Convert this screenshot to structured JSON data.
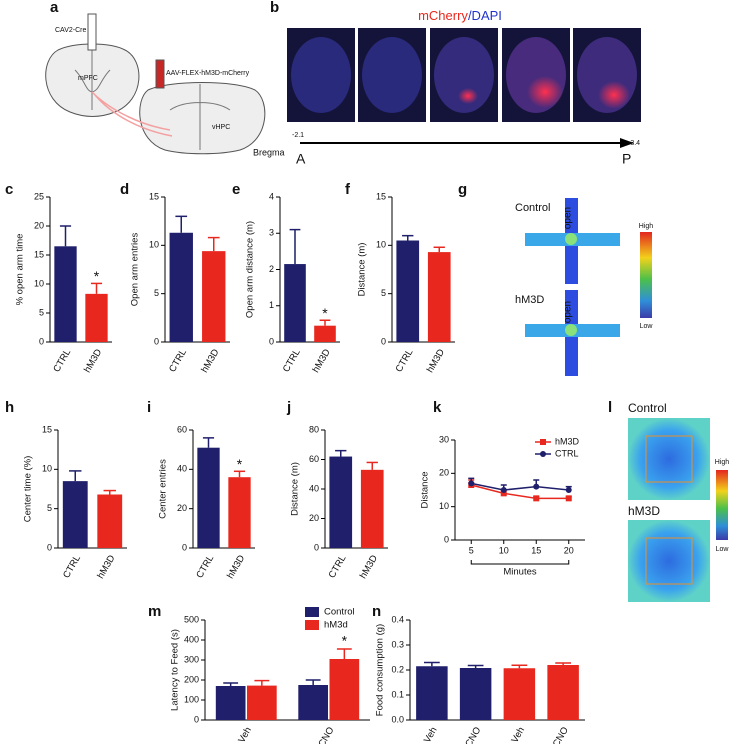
{
  "panels": {
    "a": "a",
    "b": "b",
    "g": "g",
    "l": "l",
    "a_texts": {
      "virus1": "CAV2-Cre",
      "region1": "mPFC",
      "virus2": "AAV-FLEX-hM3D-mCherry",
      "region2": "vHPC"
    },
    "b_texts": {
      "stain_red": "mCherry",
      "stain_blue": "/DAPI",
      "bregma": "Bregma",
      "start_value": "-2.1",
      "end_value": "-3.4",
      "start": "A",
      "end": "P"
    },
    "g_texts": {
      "group1": "Control",
      "arm1": "open",
      "group2": "hM3D",
      "arm2": "open",
      "high": "High",
      "low": "Low"
    },
    "l_texts": {
      "group1": "Control",
      "group2": "hM3D",
      "high": "High",
      "low": "Low"
    }
  },
  "chart_data": [
    {
      "type": "bar",
      "panel_label": "c",
      "ylabel": "% open arm time",
      "categories": [
        "CTRL",
        "hM3D"
      ],
      "values": [
        16.5,
        8.3
      ],
      "errors": [
        3.5,
        1.8
      ],
      "colors": [
        "#1f1f6b",
        "#e8281e"
      ],
      "ylim": [
        0,
        25
      ],
      "yticks": [
        0,
        5,
        10,
        15,
        20,
        25
      ],
      "annotations": [
        {
          "text": "*",
          "category": "hM3D"
        }
      ]
    },
    {
      "type": "bar",
      "panel_label": "d",
      "ylabel": "Open arm entries",
      "categories": [
        "CTRL",
        "hM3D"
      ],
      "values": [
        11.3,
        9.4
      ],
      "errors": [
        1.7,
        1.4
      ],
      "colors": [
        "#1f1f6b",
        "#e8281e"
      ],
      "ylim": [
        0,
        15
      ],
      "yticks": [
        0,
        5,
        10,
        15
      ]
    },
    {
      "type": "bar",
      "panel_label": "e",
      "ylabel": "Open arm distance (m)",
      "categories": [
        "CTRL",
        "hM3D"
      ],
      "values": [
        2.15,
        0.45
      ],
      "errors": [
        0.95,
        0.15
      ],
      "colors": [
        "#1f1f6b",
        "#e8281e"
      ],
      "ylim": [
        0,
        4
      ],
      "yticks": [
        0,
        1,
        2,
        3,
        4
      ],
      "annotations": [
        {
          "text": "*",
          "category": "hM3D"
        }
      ]
    },
    {
      "type": "bar",
      "panel_label": "f",
      "ylabel": "Distance (m)",
      "categories": [
        "CTRL",
        "hM3D"
      ],
      "values": [
        10.5,
        9.3
      ],
      "errors": [
        0.5,
        0.5
      ],
      "colors": [
        "#1f1f6b",
        "#e8281e"
      ],
      "ylim": [
        0,
        15
      ],
      "yticks": [
        0,
        5,
        10,
        15
      ]
    },
    {
      "type": "bar",
      "panel_label": "h",
      "ylabel": "Center time (%)",
      "categories": [
        "CTRL",
        "hM3D"
      ],
      "values": [
        8.5,
        6.8
      ],
      "errors": [
        1.3,
        0.5
      ],
      "colors": [
        "#1f1f6b",
        "#e8281e"
      ],
      "ylim": [
        0,
        15
      ],
      "yticks": [
        0,
        5,
        10,
        15
      ]
    },
    {
      "type": "bar",
      "panel_label": "i",
      "ylabel": "Center entries",
      "categories": [
        "CTRL",
        "hM3D"
      ],
      "values": [
        51,
        36
      ],
      "errors": [
        5,
        3
      ],
      "colors": [
        "#1f1f6b",
        "#e8281e"
      ],
      "ylim": [
        0,
        60
      ],
      "yticks": [
        0,
        20,
        40,
        60
      ],
      "annotations": [
        {
          "text": "*",
          "category": "hM3D"
        }
      ]
    },
    {
      "type": "bar",
      "panel_label": "j",
      "ylabel": "Distance (m)",
      "categories": [
        "CTRL",
        "hM3D"
      ],
      "values": [
        62,
        53
      ],
      "errors": [
        4,
        5
      ],
      "colors": [
        "#1f1f6b",
        "#e8281e"
      ],
      "ylim": [
        0,
        80
      ],
      "yticks": [
        0,
        20,
        40,
        60,
        80
      ]
    },
    {
      "type": "line",
      "panel_label": "k",
      "ylabel": "Distance",
      "xlabel": "Minutes",
      "x": [
        5,
        10,
        15,
        20
      ],
      "xlim": [
        2.5,
        22.5
      ],
      "xticks": [
        5,
        10,
        15,
        20
      ],
      "ylim": [
        0,
        30
      ],
      "yticks": [
        0,
        10,
        20,
        30
      ],
      "series": [
        {
          "name": "hM3D",
          "color": "#e8281e",
          "values": [
            16.5,
            14,
            12.5,
            12.5
          ],
          "errors": [
            1.5,
            1,
            0.5,
            0.5
          ]
        },
        {
          "name": "CTRL",
          "color": "#1f1f6b",
          "values": [
            17,
            15,
            16,
            15
          ],
          "errors": [
            1.5,
            1.5,
            2,
            1
          ]
        }
      ]
    },
    {
      "type": "grouped_bar",
      "panel_label": "m",
      "ylabel": "Latency to Feed (s)",
      "categories": [
        "Veh",
        "CNO"
      ],
      "ylim": [
        0,
        500
      ],
      "yticks": [
        0,
        100,
        200,
        300,
        400,
        500
      ],
      "series": [
        {
          "name": "Control",
          "color": "#1f1f6b",
          "values": [
            170,
            175
          ],
          "errors": [
            15,
            25
          ]
        },
        {
          "name": "hM3d",
          "color": "#e8281e",
          "values": [
            172,
            305
          ],
          "errors": [
            25,
            50
          ]
        }
      ],
      "annotations": [
        {
          "text": "*",
          "series": "hM3d",
          "category": "CNO"
        }
      ]
    },
    {
      "type": "bar",
      "panel_label": "n",
      "ylabel": "Food consumption (g)",
      "categories": [
        "Veh",
        "CNO",
        "Veh",
        "CNO"
      ],
      "values": [
        0.215,
        0.208,
        0.207,
        0.22
      ],
      "errors": [
        0.015,
        0.01,
        0.012,
        0.008
      ],
      "colors": [
        "#1f1f6b",
        "#1f1f6b",
        "#e8281e",
        "#e8281e"
      ],
      "ylim": [
        0,
        0.4
      ],
      "yticks": [
        {
          "value": 0,
          "label": "0.0"
        },
        0.1,
        0.2,
        0.3,
        0.4
      ]
    }
  ]
}
